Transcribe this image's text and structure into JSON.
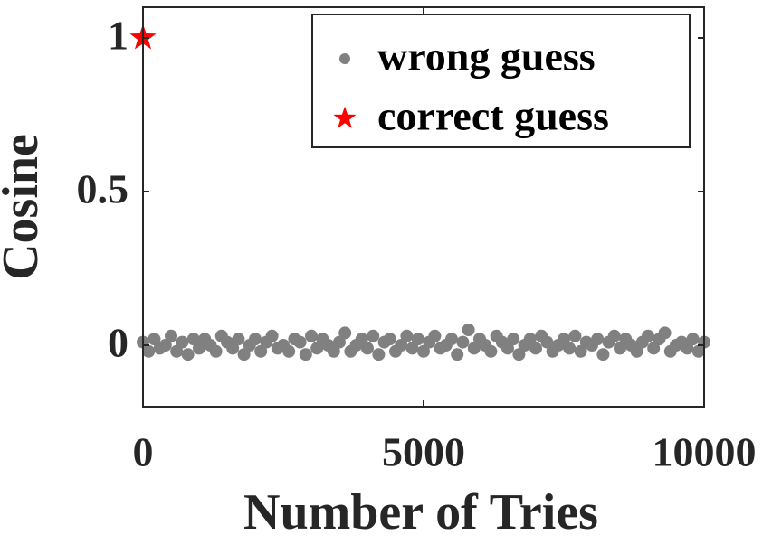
{
  "chart_data": {
    "type": "scatter",
    "xlabel": "Number of Tries",
    "ylabel": "Cosine",
    "xlim": [
      0,
      10000
    ],
    "xticks": [
      0,
      5000,
      10000
    ],
    "ylim": [
      -0.2,
      1.1
    ],
    "yticks": [
      0,
      0.5,
      1
    ],
    "legend": "upper right",
    "series": [
      {
        "name": "wrong guess",
        "color": "#808080",
        "marker": "circle",
        "x": [
          0,
          100,
          200,
          300,
          400,
          500,
          600,
          700,
          800,
          900,
          1000,
          1100,
          1200,
          1300,
          1400,
          1500,
          1600,
          1700,
          1800,
          1900,
          2000,
          2100,
          2200,
          2300,
          2400,
          2500,
          2600,
          2700,
          2800,
          2900,
          3000,
          3100,
          3200,
          3300,
          3400,
          3500,
          3600,
          3700,
          3800,
          3900,
          4000,
          4100,
          4200,
          4300,
          4400,
          4500,
          4600,
          4700,
          4800,
          4900,
          5000,
          5100,
          5200,
          5300,
          5400,
          5500,
          5600,
          5700,
          5800,
          5900,
          6000,
          6100,
          6200,
          6300,
          6400,
          6500,
          6600,
          6700,
          6800,
          6900,
          7000,
          7100,
          7200,
          7300,
          7400,
          7500,
          7600,
          7700,
          7800,
          7900,
          8000,
          8100,
          8200,
          8300,
          8400,
          8500,
          8600,
          8700,
          8800,
          8900,
          9000,
          9100,
          9200,
          9300,
          9400,
          9500,
          9600,
          9700,
          9800,
          9900,
          10000
        ],
        "values": [
          0.01,
          -0.02,
          0.02,
          -0.01,
          0.0,
          0.03,
          -0.02,
          0.01,
          -0.03,
          0.02,
          -0.01,
          0.02,
          0.0,
          -0.02,
          0.03,
          0.01,
          -0.01,
          0.02,
          -0.03,
          0.0,
          0.02,
          -0.02,
          0.01,
          0.03,
          -0.01,
          0.0,
          -0.02,
          0.02,
          0.01,
          -0.03,
          0.03,
          -0.01,
          0.02,
          0.0,
          -0.02,
          0.01,
          0.04,
          -0.02,
          0.0,
          0.02,
          -0.01,
          0.03,
          -0.03,
          0.01,
          0.02,
          -0.02,
          0.0,
          0.03,
          -0.01,
          0.02,
          -0.02,
          0.01,
          0.03,
          -0.01,
          0.0,
          0.02,
          -0.03,
          0.01,
          0.05,
          -0.01,
          0.02,
          0.0,
          -0.02,
          0.03,
          0.01,
          -0.01,
          0.02,
          -0.03,
          0.0,
          0.02,
          -0.01,
          0.03,
          0.01,
          -0.02,
          0.0,
          0.02,
          -0.01,
          0.03,
          -0.02,
          0.01,
          0.0,
          0.02,
          -0.03,
          0.01,
          0.03,
          -0.01,
          0.02,
          0.0,
          -0.02,
          0.01,
          0.03,
          -0.01,
          0.02,
          0.04,
          -0.02,
          0.0,
          0.01,
          -0.01,
          0.02,
          -0.02,
          0.01
        ]
      },
      {
        "name": "correct guess",
        "color": "#ff0000",
        "marker": "star",
        "x": [
          0
        ],
        "values": [
          1
        ]
      }
    ]
  }
}
